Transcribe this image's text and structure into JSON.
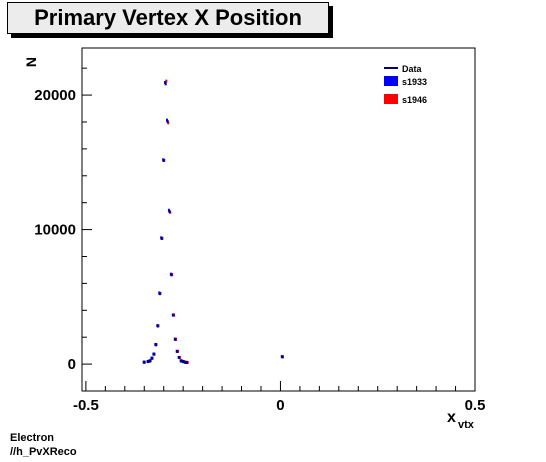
{
  "page": {
    "title": "Primary Vertex X Position",
    "footer_line1": "Electron",
    "footer_line2": "//h_PvXReco"
  },
  "colors": {
    "data": "#000080",
    "s1933": "#0000ff",
    "s1946": "#ff0000"
  },
  "chart_data": {
    "type": "scatter",
    "title": "Primary Vertex X Position",
    "xlabel_main": "x",
    "xlabel_sub": "vtx",
    "ylabel": "N",
    "xlim": [
      -0.51,
      0.5
    ],
    "ylim": [
      -2000,
      23500
    ],
    "xticks": [
      -0.5,
      0,
      0.5
    ],
    "xtick_labels": [
      "-0.5",
      "0",
      "0.5"
    ],
    "yticks": [
      0,
      10000,
      20000
    ],
    "ytick_labels": [
      "0",
      "10000",
      "20000"
    ],
    "legend_position": "top-right",
    "legend": [
      {
        "label": "Data",
        "style": "line",
        "color": "#000080"
      },
      {
        "label": "s1933",
        "style": "box",
        "color": "#0000ff"
      },
      {
        "label": "s1946",
        "style": "box",
        "color": "#ff0000"
      }
    ],
    "series": [
      {
        "name": "Data",
        "color": "#000080",
        "x": [
          -0.35,
          -0.34,
          -0.335,
          -0.33,
          -0.325,
          -0.32,
          -0.315,
          -0.31,
          -0.305,
          -0.3,
          -0.295,
          -0.29,
          -0.285,
          -0.28,
          -0.275,
          -0.27,
          -0.265,
          -0.26,
          -0.255,
          -0.25,
          -0.245,
          -0.24,
          0.005
        ],
        "y": [
          100,
          150,
          200,
          400,
          700,
          1400,
          2800,
          5200,
          9300,
          15100,
          20800,
          18000,
          11300,
          6600,
          3600,
          1800,
          900,
          450,
          200,
          150,
          100,
          80,
          500
        ]
      },
      {
        "name": "s1933",
        "color": "#0000ff",
        "x": [
          -0.35,
          -0.34,
          -0.335,
          -0.33,
          -0.325,
          -0.32,
          -0.315,
          -0.31,
          -0.305,
          -0.3,
          -0.295,
          -0.29,
          -0.285,
          -0.28,
          -0.275,
          -0.27,
          -0.265,
          -0.26,
          -0.255,
          -0.25,
          -0.245,
          -0.24,
          0.005
        ],
        "y": [
          110,
          160,
          210,
          410,
          710,
          1420,
          2820,
          5250,
          9350,
          15150,
          20900,
          18100,
          11400,
          6650,
          3620,
          1820,
          920,
          460,
          210,
          160,
          110,
          90,
          520
        ]
      },
      {
        "name": "s1946",
        "color": "#ff0000",
        "x": [
          -0.35,
          -0.34,
          -0.335,
          -0.33,
          -0.325,
          -0.32,
          -0.315,
          -0.31,
          -0.305,
          -0.3,
          -0.295,
          -0.29,
          -0.285,
          -0.28,
          -0.275,
          -0.27,
          -0.265,
          -0.26,
          -0.255,
          -0.25,
          -0.245,
          -0.24,
          0.005
        ],
        "y": [
          105,
          155,
          205,
          405,
          705,
          1410,
          2810,
          5220,
          9320,
          15120,
          21000,
          17900,
          11250,
          6620,
          3610,
          1810,
          910,
          455,
          205,
          155,
          105,
          85,
          510
        ]
      }
    ]
  }
}
